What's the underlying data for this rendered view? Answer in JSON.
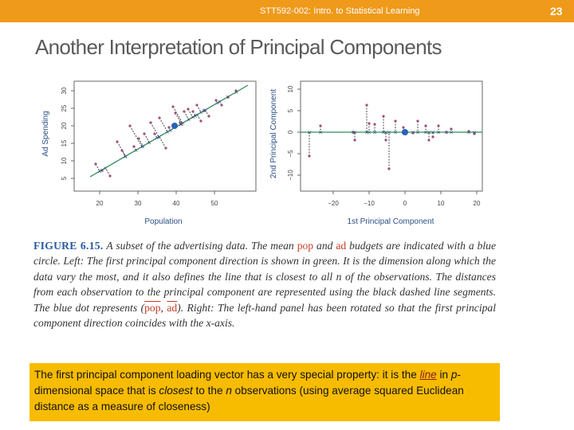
{
  "header": {
    "course": "STT592-002: Intro. to Statistical Learning",
    "page_number": "23"
  },
  "slide": {
    "title": "Another Interpretation of Principal Components"
  },
  "figure": {
    "left_plot": {
      "xlabel": "Population",
      "ylabel": "Ad Spending",
      "xticks": [
        "20",
        "30",
        "40",
        "50"
      ],
      "yticks": [
        "5",
        "10",
        "15",
        "20",
        "25",
        "30"
      ]
    },
    "right_plot": {
      "xlabel": "1st Principal Component",
      "ylabel": "2nd Principal Component",
      "xticks": [
        "−20",
        "−10",
        "0",
        "10",
        "20"
      ],
      "yticks": [
        "−10",
        "−5",
        "0",
        "5",
        "10"
      ]
    }
  },
  "caption": {
    "label": "FIGURE 6.15.",
    "t1": "A subset of the advertising data. The mean ",
    "pop": "pop",
    "t2": " and ",
    "ad": "ad",
    "t3": " budgets are indicated with a blue circle. Left: The first principal component direction is shown in green. It is the dimension along which the data vary the most, and it also defines the line that is closest to all n of the observations. The distances from each observation to the principal component are represented using the black dashed line segments. The blue dot represents (",
    "comma": ", ",
    "t4": "). Right: The left-hand panel has been rotated so that the first principal component direction coincides with the x-axis."
  },
  "note": {
    "s1": "The first principal component loading vector has a very special property: it is the ",
    "line": "line",
    "s2": " in ",
    "p": "p",
    "s3": "-dimensional space that is ",
    "closest": "closest",
    "s4": " to the ",
    "n": "n",
    "s5": " observations (using average squared Euclidean distance as a measure of closeness)"
  },
  "colors": {
    "accent": "#ef9a1b",
    "note_bg": "#f7bc00",
    "pc_line": "#2e8b57",
    "mean_dot": "#2a62b8",
    "points": "#a0507a"
  }
}
